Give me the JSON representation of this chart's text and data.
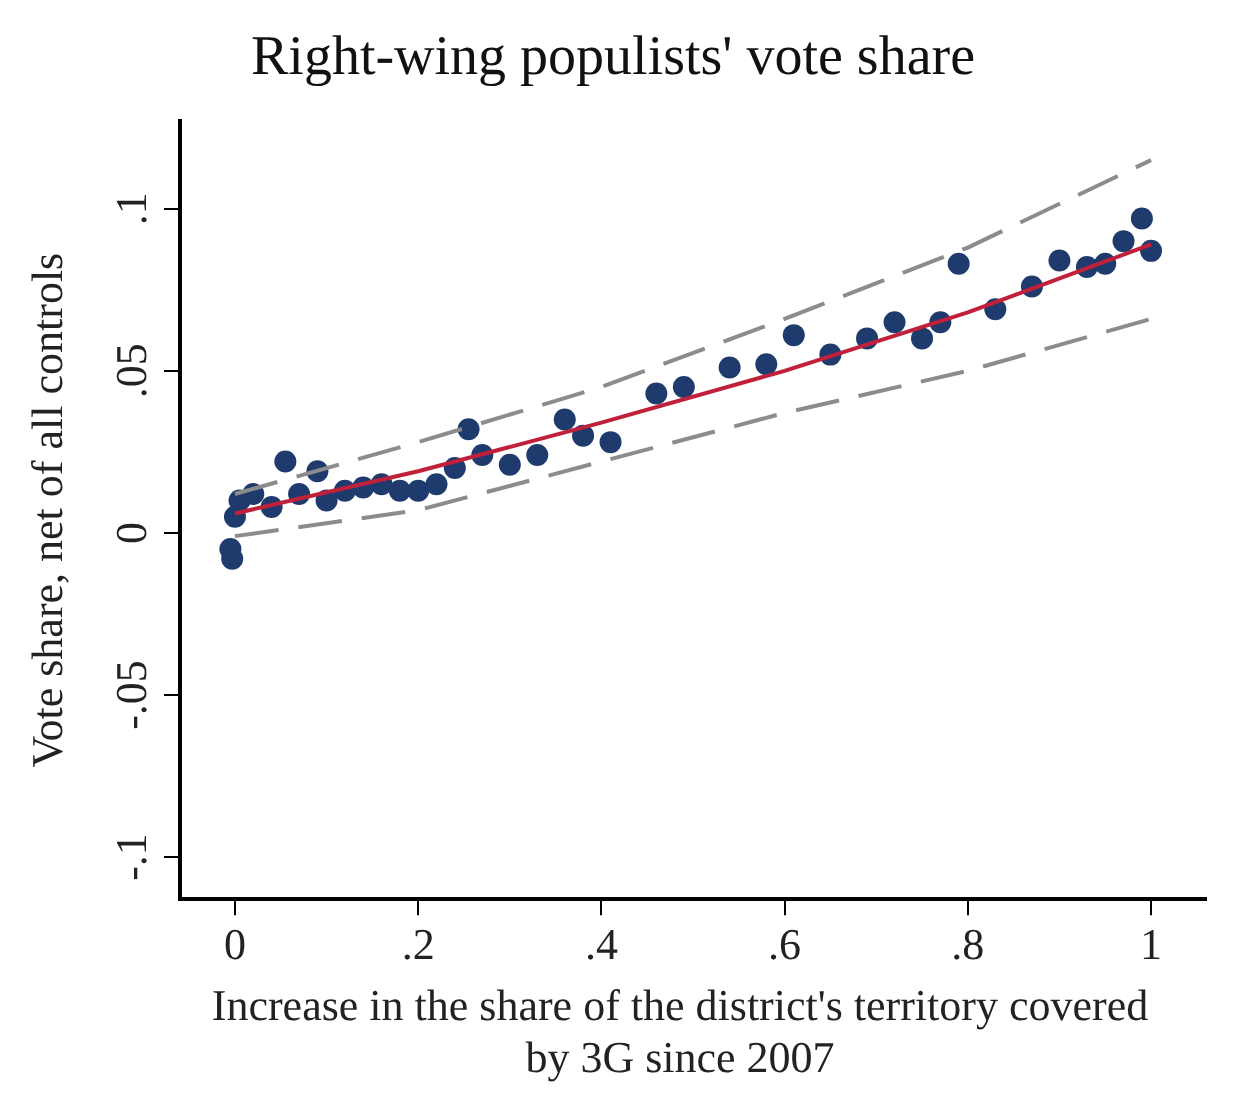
{
  "chart_data": {
    "type": "scatter",
    "title": "Right-wing populists' vote share",
    "xlabel": "Increase in the share of the district's territory covered by 3G since 2007",
    "ylabel": "Vote share, net of all controls",
    "xlim": [
      -0.06,
      1.06
    ],
    "xticks": [
      {
        "value": 0,
        "label": "0"
      },
      {
        "value": 0.2,
        "label": ".2"
      },
      {
        "value": 0.4,
        "label": ".4"
      },
      {
        "value": 0.6,
        "label": ".6"
      },
      {
        "value": 0.8,
        "label": ".8"
      },
      {
        "value": 1,
        "label": "1"
      }
    ],
    "ylim": [
      -0.113,
      0.127
    ],
    "yticks": [
      {
        "value": -0.1,
        "label": "-.1"
      },
      {
        "value": -0.05,
        "label": "-.05"
      },
      {
        "value": 0,
        "label": "0"
      },
      {
        "value": 0.05,
        "label": ".05"
      },
      {
        "value": 0.1,
        "label": ".1"
      }
    ],
    "grid": false,
    "legend": false,
    "marker": "circle",
    "series": [
      {
        "type": "scatter",
        "color": "#1f3b6e",
        "x": [
          -0.005,
          -0.003,
          0,
          0.005,
          0.02,
          0.04,
          0.055,
          0.07,
          0.09,
          0.1,
          0.12,
          0.14,
          0.16,
          0.18,
          0.2,
          0.22,
          0.24,
          0.255,
          0.27,
          0.3,
          0.33,
          0.36,
          0.38,
          0.41,
          0.46,
          0.49,
          0.54,
          0.58,
          0.61,
          0.65,
          0.69,
          0.72,
          0.75,
          0.77,
          0.79,
          0.83,
          0.87,
          0.9,
          0.93,
          0.95,
          0.97,
          0.99,
          1.0
        ],
        "values": [
          -0.005,
          -0.008,
          0.005,
          0.01,
          0.012,
          0.008,
          0.022,
          0.012,
          0.019,
          0.01,
          0.013,
          0.014,
          0.015,
          0.013,
          0.013,
          0.015,
          0.02,
          0.032,
          0.024,
          0.021,
          0.024,
          0.035,
          0.03,
          0.028,
          0.043,
          0.045,
          0.051,
          0.052,
          0.061,
          0.055,
          0.06,
          0.065,
          0.06,
          0.065,
          0.083,
          0.069,
          0.076,
          0.084,
          0.082,
          0.083,
          0.09,
          0.097,
          0.087
        ]
      },
      {
        "type": "line",
        "color": "#c0203a",
        "line_style": "solid",
        "marker": "none",
        "x": [
          0,
          0.2,
          0.4,
          0.6,
          0.8,
          1
        ],
        "values": [
          0.006,
          0.019,
          0.034,
          0.05,
          0.068,
          0.089
        ]
      },
      {
        "type": "line",
        "color": "#8c8c8c",
        "line_style": "dashed",
        "marker": "none",
        "x": [
          0,
          0.2,
          0.4,
          0.6,
          0.8,
          1
        ],
        "values": [
          0.012,
          0.028,
          0.045,
          0.066,
          0.088,
          0.115
        ]
      },
      {
        "type": "line",
        "color": "#8c8c8c",
        "line_style": "dashed",
        "marker": "none",
        "x": [
          0,
          0.2,
          0.4,
          0.6,
          0.8,
          1
        ],
        "values": [
          -0.001,
          0.007,
          0.022,
          0.037,
          0.05,
          0.066
        ]
      }
    ]
  }
}
